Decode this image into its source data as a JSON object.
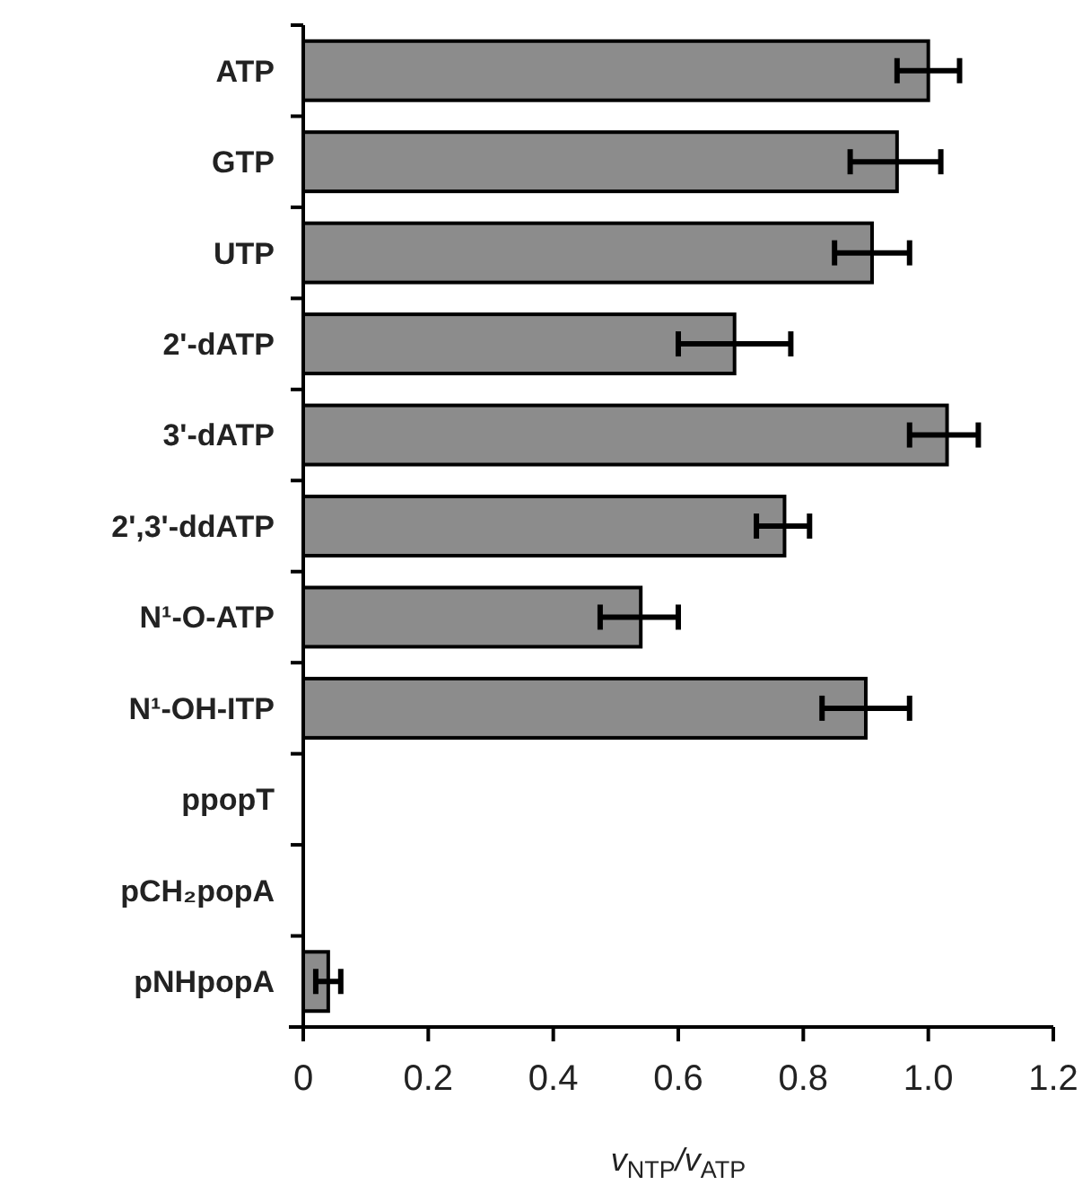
{
  "chart_data": {
    "type": "bar",
    "orientation": "horizontal",
    "xlabel": "v$_{NTP}$/v$_{ATP}$",
    "categories": [
      "ATP",
      "GTP",
      "UTP",
      "2'-dATP",
      "3'-dATP",
      "2',3'-ddATP",
      "N¹-O-ATP",
      "N¹-OH-ITP",
      "ppopT",
      "pCH₂popA",
      "pNHpopA"
    ],
    "values": [
      1.0,
      0.95,
      0.91,
      0.69,
      1.03,
      0.77,
      0.54,
      0.9,
      0,
      0,
      0.04
    ],
    "errors": [
      [
        0.95,
        1.05
      ],
      [
        0.875,
        1.02
      ],
      [
        0.85,
        0.97
      ],
      [
        0.6,
        0.78
      ],
      [
        0.97,
        1.08
      ],
      [
        0.725,
        0.81
      ],
      [
        0.475,
        0.6
      ],
      [
        0.83,
        0.97
      ],
      null,
      null,
      [
        0.02,
        0.06
      ]
    ],
    "color": "#8c8c8c",
    "xlim": [
      0,
      1.2
    ],
    "xticks": [
      0,
      0.2,
      0.4,
      0.6,
      0.8,
      {
        "value": 1.0,
        "label": "1.0"
      },
      1.2
    ],
    "grid": false
  }
}
